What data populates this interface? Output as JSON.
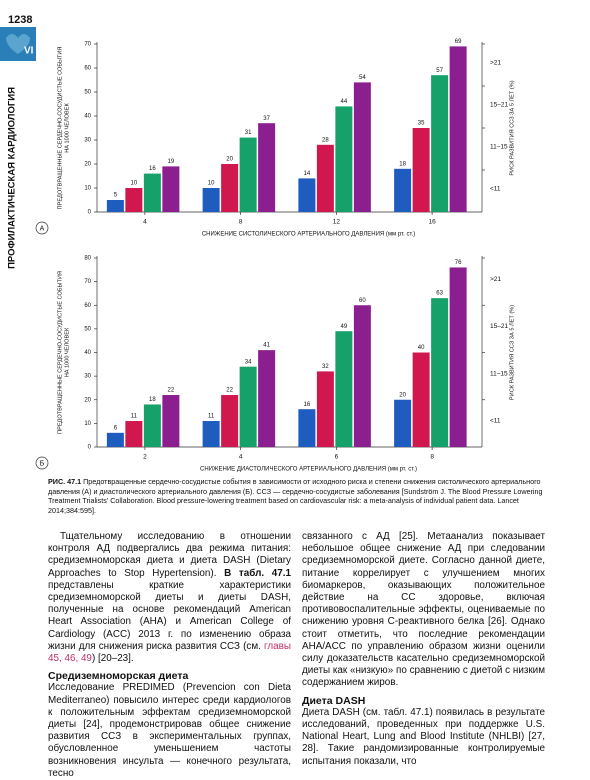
{
  "page": {
    "number": "1238",
    "part": "VI",
    "section": "ПРОФИЛАКТИЧЕСКАЯ КАРДИОЛОГИЯ"
  },
  "chart_data": [
    {
      "type": "bar",
      "label": "А",
      "categories": [
        "4",
        "8",
        "12",
        "16"
      ],
      "series": [
        {
          "name": "<11",
          "color": "#1f5cc0",
          "values": [
            5,
            10,
            14,
            18
          ]
        },
        {
          "name": "11–15",
          "color": "#d0184f",
          "values": [
            10,
            20,
            28,
            35
          ]
        },
        {
          "name": "15–21",
          "color": "#16a06a",
          "values": [
            16,
            31,
            44,
            57
          ]
        },
        {
          "name": ">21",
          "color": "#8b1f8f",
          "values": [
            19,
            37,
            54,
            69
          ]
        }
      ],
      "ylim": [
        0,
        70
      ],
      "yticks": [
        0,
        10,
        20,
        30,
        40,
        50,
        60,
        70
      ],
      "x_label": "СНИЖЕНИЕ СИСТОЛИЧЕСКОГО АРТЕРИАЛЬНОГО ДАВЛЕНИЯ (мм рт. ст.)",
      "y_label": [
        "ПРЕДОТВРАЩЕННЫЕ СЕРДЕЧНО-СОСУДИСТЫЕ СОБЫТИЯ",
        "НА 1000 ЧЕЛОВЕК"
      ],
      "y2_label": "РИСК РАЗВИТИЯ ССЗ ЗА 5 ЛЕТ (%)",
      "legend": "right",
      "data_labels": true,
      "grid": false
    },
    {
      "type": "bar",
      "label": "Б",
      "categories": [
        "2",
        "4",
        "6",
        "8"
      ],
      "series": [
        {
          "name": "<11",
          "color": "#1f5cc0",
          "values": [
            6,
            11,
            16,
            20
          ]
        },
        {
          "name": "11–15",
          "color": "#d0184f",
          "values": [
            11,
            22,
            32,
            40
          ]
        },
        {
          "name": "15–21",
          "color": "#16a06a",
          "values": [
            18,
            34,
            49,
            63
          ]
        },
        {
          "name": ">21",
          "color": "#8b1f8f",
          "values": [
            22,
            41,
            60,
            76
          ]
        }
      ],
      "ylim": [
        0,
        80
      ],
      "yticks": [
        0,
        10,
        20,
        30,
        40,
        50,
        60,
        70,
        80
      ],
      "x_label": "СНИЖЕНИЕ ДИАСТОЛИЧЕСКОГО АРТЕРИАЛЬНОГО ДАВЛЕНИЯ (мм рт. ст.)",
      "y_label": [
        "ПРЕДОТВРАЩЕННЫЕ СЕРДЕЧНО-СОСУДИСТЫЕ СОБЫТИЯ",
        "НА 1000 ЧЕЛОВЕК"
      ],
      "y2_label": "РИСК РАЗВИТИЯ ССЗ ЗА 5 ЛЕТ (%)",
      "legend": "right",
      "data_labels": true,
      "grid": false
    }
  ],
  "figure": {
    "caption_label": "РИС. 47.1",
    "caption": "Предотвращенные сердечно-сосудистые события в зависимости от исходного риска и степени снижения систолического артериального давления (А) и диастолического артериального давления (Б). ССЗ — сердечно-сосудистые заболевания [Sundström J. The Blood Pressure Lowering Treatment Trialists' Collaboration. Blood pressure-lowering treatment based on cardiovascular risk: a meta-analysis of individual patient data. Lancet 2014;384:595]."
  },
  "text": {
    "p1": [
      "Тщательному исследованию в отношении контроля АД подвергались два режима питания: средиземноморская диета и диета DASH (Dietary Approaches to Stop Hypertension). ",
      "В табл. 47.1",
      " представлены краткие характеристики средиземноморской диеты и диеты DASH, полученные на основе рекомендаций American Heart Association (AHA) и American College of Cardiology (ACC) 2013 г. по изменению образа жизни для снижения риска развития ССЗ (см. ",
      "главы 45, 46, 49",
      ") [20–23]."
    ],
    "heading1": "Средиземноморская диета",
    "p2": "Исследование PREDIMED (Prevencion con Dieta Mediterraneo) повысило интерес среди кардиологов к положительным эффектам средиземноморской диеты [24], продемонстрировав общее снижение развития ССЗ в экспериментальных группах, обусловленное уменьшением частоты возникновения инсульта — конечного результата, тесно",
    "p3": "связанного с АД [25]. Метаанализ показывает небольшое общее снижение АД при следовании средиземноморской диете. Согласно данной диете, питание коррелирует с улучшением многих биомаркеров, оказывающих положительное действие на СС здоровье, включая противовоспалительные эффекты, оцениваемые по снижению уровня С-реактивного белка [26]. Однако стоит отметить, что последние рекомендации AHA/ACC по управлению образом жизни оценили силу доказательств касательно средиземноморской диеты как «низкую» по сравнению с диетой с низким содержанием жиров.",
    "heading2": "Диета DASH",
    "p4": "Диета DASH (см. табл. 47.1) появилась в результате исследований, проведенных при поддержке U.S. National Heart, Lung and Blood Institute (NHLBI) [27, 28]. Такие рандомизированные контролируемые испытания показали, что"
  }
}
